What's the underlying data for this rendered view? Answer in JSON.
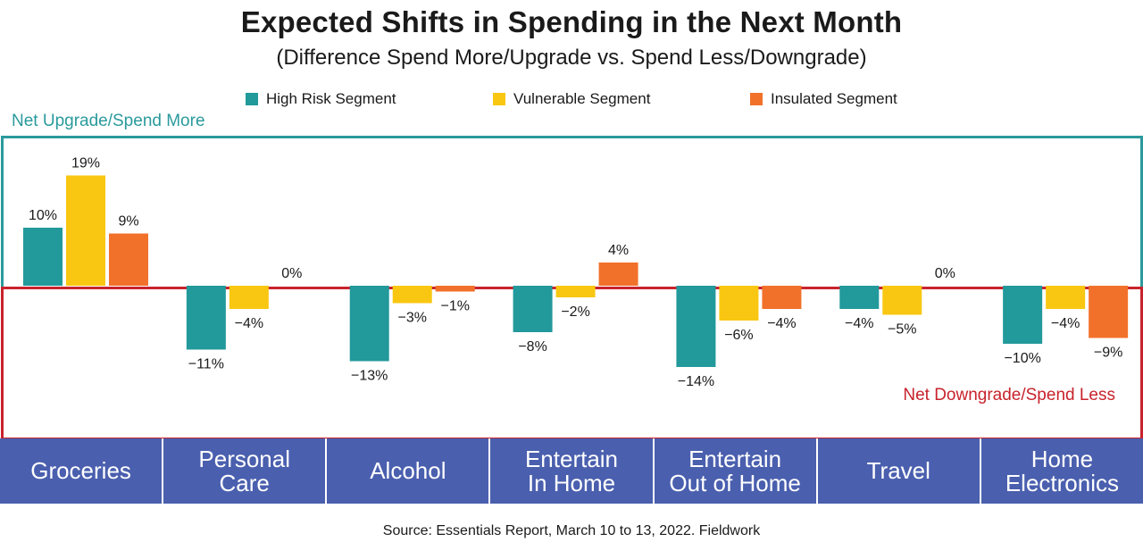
{
  "chart_data": {
    "type": "bar",
    "title": "Expected Shifts in Spending in the Next Month",
    "subtitle": "(Difference Spend More/Upgrade vs. Spend Less/Downgrade)",
    "categories": [
      "Groceries",
      "Personal\nCare",
      "Alcohol",
      "Entertain\nIn Home",
      "Entertain\nOut of Home",
      "Travel",
      "Home\nElectronics"
    ],
    "series": [
      {
        "name": "High Risk Segment",
        "color": "#22999b",
        "values": [
          10,
          -11,
          -13,
          -8,
          -14,
          -4,
          -10
        ],
        "labels": [
          "10%",
          "−11%",
          "−13%",
          "−8%",
          "−14%",
          "−4%",
          "−10%"
        ]
      },
      {
        "name": "Vulnerable Segment",
        "color": "#f9c712",
        "values": [
          19,
          -4,
          -3,
          -2,
          -6,
          -5,
          -4
        ],
        "labels": [
          "19%",
          "−4%",
          "−3%",
          "−2%",
          "−6%",
          "−5%",
          "−4%"
        ]
      },
      {
        "name": "Insulated Segment",
        "color": "#f2712a",
        "values": [
          9,
          0,
          -1,
          4,
          -4,
          0,
          -9
        ],
        "labels": [
          "9%",
          "0%",
          "−1%",
          "4%",
          "−4%",
          "0%",
          "−9%"
        ]
      }
    ],
    "ylim": [
      -20,
      20
    ],
    "region_labels": {
      "top": "Net Upgrade/Spend More",
      "bottom": "Net Downgrade/Spend Less"
    },
    "region_colors": {
      "top": "#2a9a9c",
      "bottom": "#c8232c"
    },
    "category_bar_color": "#4a5fae"
  },
  "source": "Source: Essentials Report, March 10 to 13, 2022. Fieldwork"
}
